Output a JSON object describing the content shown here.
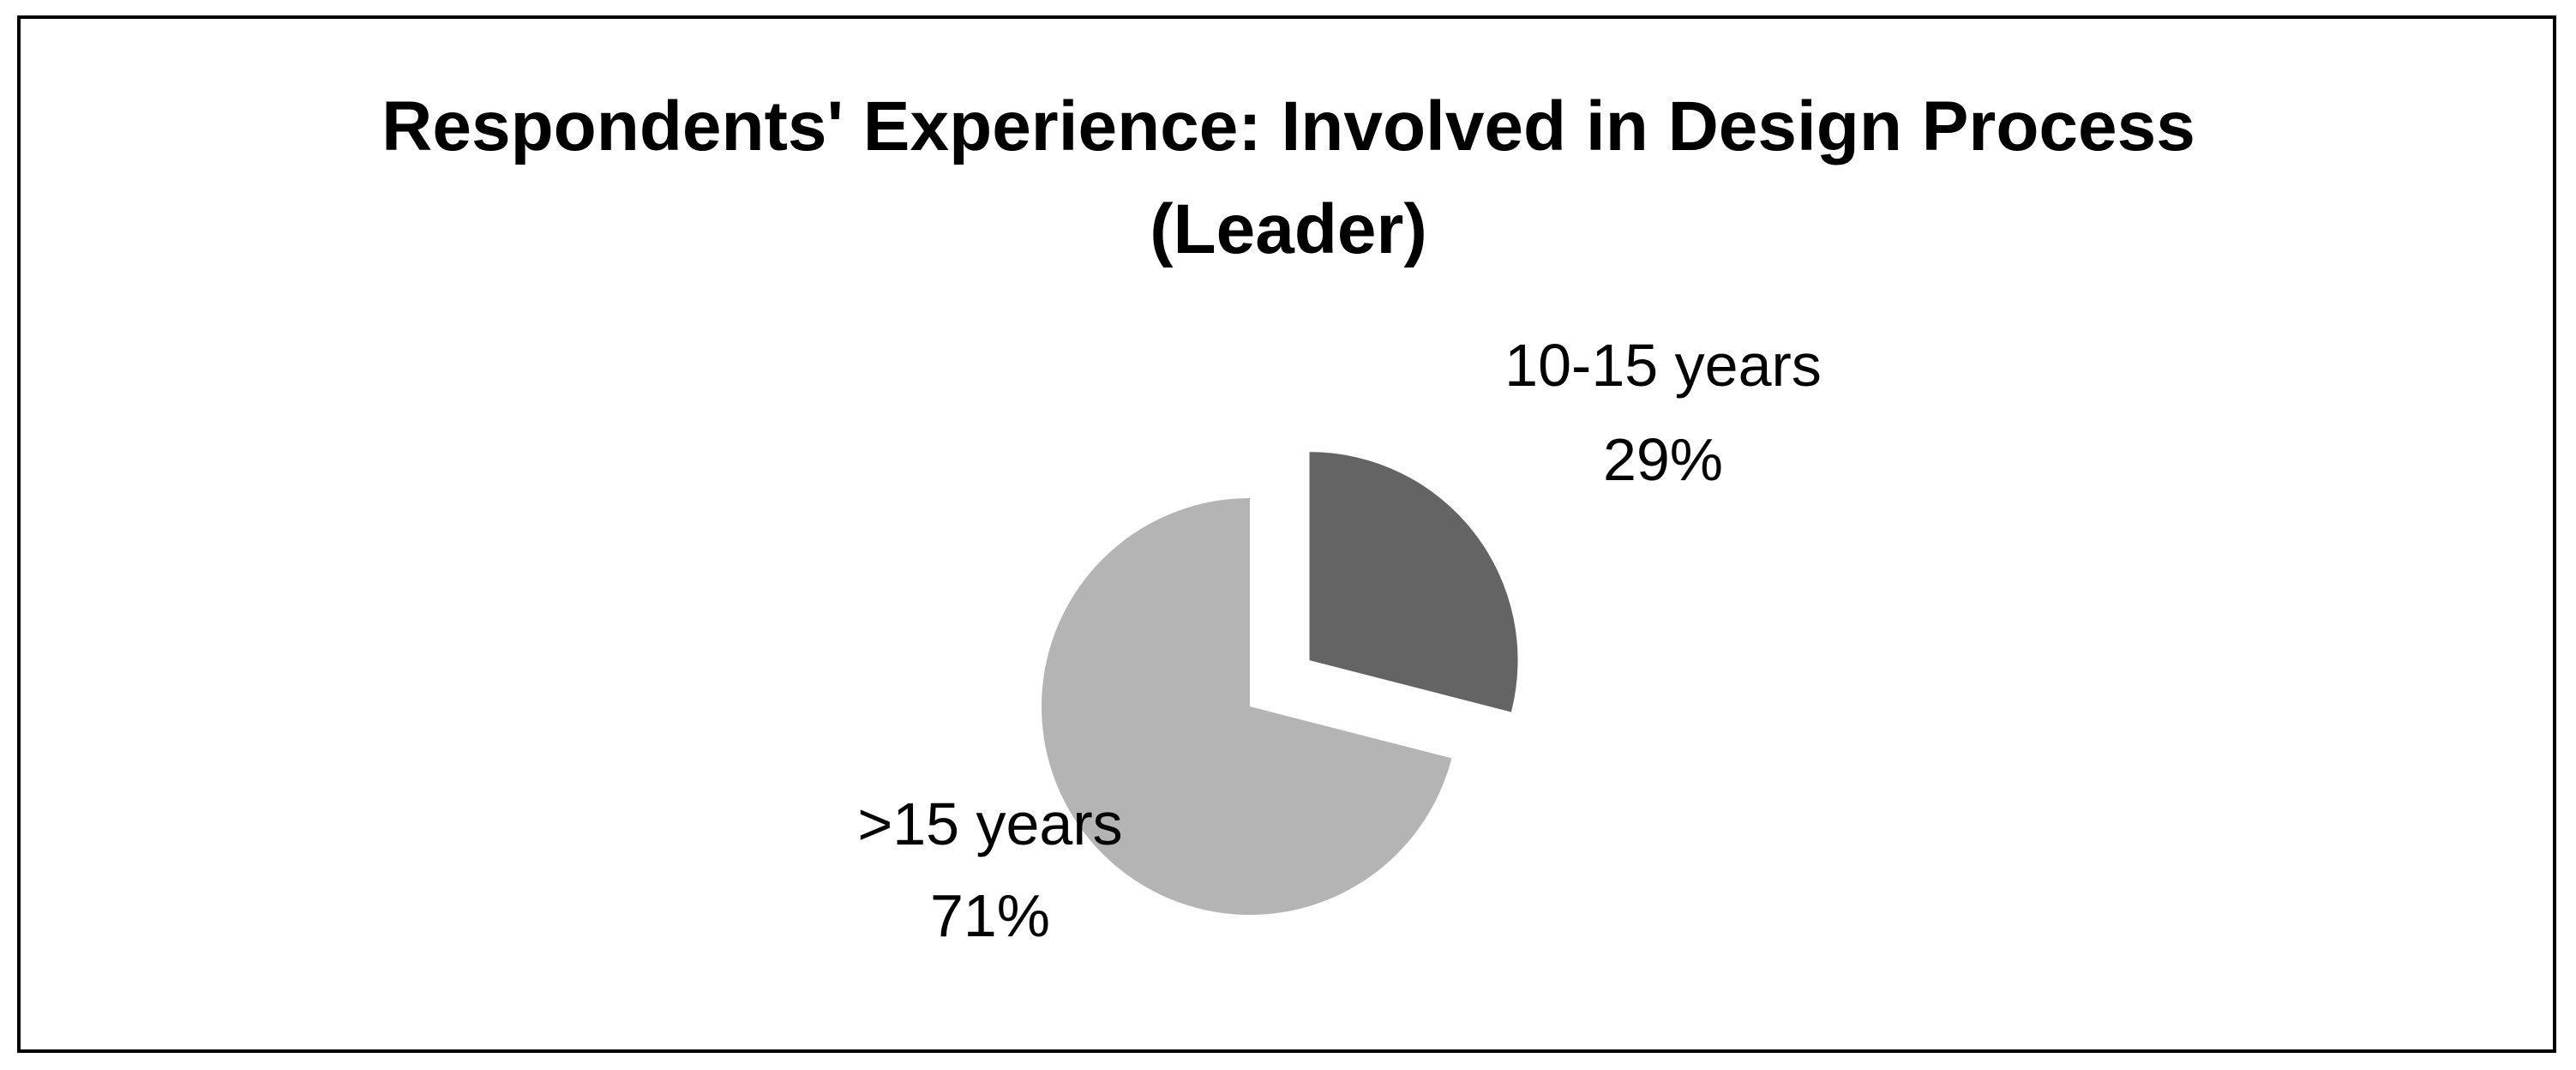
{
  "chart_data": {
    "type": "pie",
    "title_lines": [
      "Respondents' Experience: Involved in Design Process",
      "(Leader)"
    ],
    "slices": [
      {
        "category": "10-15 years",
        "value": 29,
        "label": "29%",
        "color": "#646464",
        "exploded": true
      },
      {
        "category": ">15 years",
        "value": 71,
        "label": "71%",
        "color": "#b4b4b4",
        "exploded": false
      }
    ],
    "start_angle_deg": 0,
    "direction": "clockwise",
    "legend": "none",
    "data_labels": "category and percent, outside slices"
  }
}
